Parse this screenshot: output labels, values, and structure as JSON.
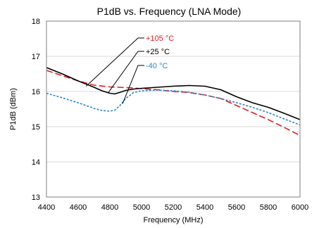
{
  "chart_data": {
    "type": "line",
    "title": "P1dB vs. Frequency (LNA Mode)",
    "xlabel": "Frequency (MHz)",
    "ylabel": "P1dB (dBm)",
    "xlim": [
      4400,
      6000
    ],
    "ylim": [
      13,
      18
    ],
    "xticks": [
      4400,
      4600,
      4800,
      5000,
      5200,
      5400,
      5600,
      5800,
      6000
    ],
    "yticks": [
      13,
      14,
      15,
      16,
      17,
      18
    ],
    "grid": true,
    "legend": "callout labels top-center",
    "series": [
      {
        "name": "+105 °C",
        "color": "#e8191e",
        "dash": "dashed",
        "x": [
          4400,
          4500,
          4600,
          4700,
          4800,
          4850,
          4900,
          4950,
          5000,
          5100,
          5200,
          5300,
          5400,
          5500,
          5600,
          5700,
          5800,
          5900,
          6000
        ],
        "y": [
          16.6,
          16.45,
          16.3,
          16.18,
          16.13,
          16.12,
          16.11,
          16.1,
          16.08,
          16.05,
          16.0,
          15.97,
          15.9,
          15.8,
          15.6,
          15.4,
          15.2,
          14.98,
          14.75
        ]
      },
      {
        "name": "+25 °C",
        "color": "#000000",
        "dash": "solid",
        "x": [
          4400,
          4500,
          4600,
          4700,
          4750,
          4800,
          4830,
          4860,
          4900,
          4950,
          5000,
          5100,
          5200,
          5300,
          5400,
          5500,
          5600,
          5700,
          5800,
          5900,
          6000
        ],
        "y": [
          16.68,
          16.5,
          16.3,
          16.12,
          16.02,
          15.95,
          15.93,
          15.97,
          16.03,
          16.07,
          16.09,
          16.12,
          16.15,
          16.17,
          16.15,
          16.05,
          15.85,
          15.68,
          15.55,
          15.38,
          15.2
        ]
      },
      {
        "name": "-40 °C",
        "color": "#2f86c6",
        "dash": "dotted",
        "x": [
          4400,
          4500,
          4600,
          4700,
          4750,
          4800,
          4830,
          4860,
          4900,
          4950,
          5000,
          5100,
          5200,
          5300,
          5400,
          5500,
          5600,
          5700,
          5800,
          5900,
          6000
        ],
        "y": [
          15.95,
          15.82,
          15.68,
          15.52,
          15.46,
          15.44,
          15.47,
          15.58,
          15.8,
          15.97,
          16.02,
          16.04,
          16.02,
          15.98,
          15.9,
          15.8,
          15.68,
          15.55,
          15.4,
          15.22,
          15.05
        ]
      }
    ],
    "callouts": [
      {
        "label": "+105 °C",
        "color": "#e8191e",
        "point_x": 4650,
        "point_y": 16.15
      },
      {
        "label": "+25 °C",
        "color": "#000000",
        "point_x": 4790,
        "point_y": 15.97
      },
      {
        "label": "-40 °C",
        "color": "#2f86c6",
        "point_x": 4880,
        "point_y": 15.65
      }
    ]
  }
}
